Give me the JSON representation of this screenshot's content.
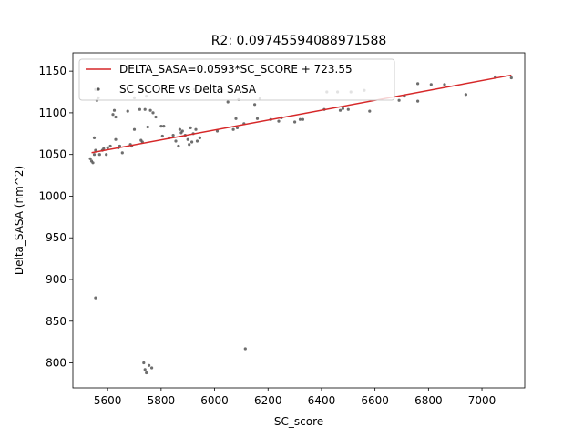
{
  "chart_data": {
    "type": "scatter",
    "title": "R2: 0.09745594088971588",
    "xlabel": "SC_score",
    "ylabel": "Delta_SASA (nm^2)",
    "xlim": [
      5470,
      7160
    ],
    "ylim": [
      770,
      1172
    ],
    "xticks": [
      5600,
      5800,
      6000,
      6200,
      6400,
      6600,
      6800,
      7000
    ],
    "yticks": [
      800,
      850,
      900,
      950,
      1000,
      1050,
      1100,
      1150
    ],
    "xtick_labels": [
      "5600",
      "5800",
      "6000",
      "6200",
      "6400",
      "6600",
      "6800",
      "7000"
    ],
    "ytick_labels": [
      "800",
      "850",
      "900",
      "950",
      "1000",
      "1050",
      "1100",
      "1150"
    ],
    "grid": false,
    "legend_position": "top-left",
    "colors": {
      "fit": "#d62728",
      "points": "#555555"
    },
    "series": [
      {
        "name": "DELTA_SASA=0.0593*SC_SCORE + 723.55",
        "kind": "line",
        "slope": 0.0593,
        "intercept": 723.55,
        "x_range": [
          5540,
          7110
        ]
      },
      {
        "name": "SC SCORE vs Delta SASA",
        "kind": "scatter",
        "points": [
          [
            5535,
            1045
          ],
          [
            5540,
            1042
          ],
          [
            5545,
            1040
          ],
          [
            5550,
            1050
          ],
          [
            5550,
            1070
          ],
          [
            5555,
            1055
          ],
          [
            5560,
            1115
          ],
          [
            5555,
            1128
          ],
          [
            5565,
            1118
          ],
          [
            5570,
            1050
          ],
          [
            5580,
            1055
          ],
          [
            5585,
            1057
          ],
          [
            5595,
            1050
          ],
          [
            5600,
            1058
          ],
          [
            5610,
            1060
          ],
          [
            5620,
            1098
          ],
          [
            5625,
            1103
          ],
          [
            5630,
            1095
          ],
          [
            5630,
            1068
          ],
          [
            5640,
            1058
          ],
          [
            5645,
            1060
          ],
          [
            5655,
            1052
          ],
          [
            5675,
            1102
          ],
          [
            5685,
            1062
          ],
          [
            5690,
            1060
          ],
          [
            5700,
            1080
          ],
          [
            5700,
            1118
          ],
          [
            5720,
            1104
          ],
          [
            5725,
            1067
          ],
          [
            5730,
            1065
          ],
          [
            5740,
            1104
          ],
          [
            5745,
            1120
          ],
          [
            5750,
            1083
          ],
          [
            5760,
            1103
          ],
          [
            5770,
            1100
          ],
          [
            5780,
            1095
          ],
          [
            5800,
            1084
          ],
          [
            5805,
            1072
          ],
          [
            5810,
            1084
          ],
          [
            5830,
            1070
          ],
          [
            5845,
            1073
          ],
          [
            5855,
            1066
          ],
          [
            5865,
            1060
          ],
          [
            5870,
            1080
          ],
          [
            5875,
            1076
          ],
          [
            5880,
            1078
          ],
          [
            5890,
            1073
          ],
          [
            5900,
            1068
          ],
          [
            5905,
            1062
          ],
          [
            5910,
            1082
          ],
          [
            5915,
            1065
          ],
          [
            5920,
            1075
          ],
          [
            5925,
            1128
          ],
          [
            5930,
            1080
          ],
          [
            5935,
            1066
          ],
          [
            5945,
            1070
          ],
          [
            5950,
            1127
          ],
          [
            6010,
            1078
          ],
          [
            6050,
            1113
          ],
          [
            6070,
            1080
          ],
          [
            6080,
            1093
          ],
          [
            6085,
            1082
          ],
          [
            6090,
            1116
          ],
          [
            6110,
            1087
          ],
          [
            6150,
            1110
          ],
          [
            6160,
            1093
          ],
          [
            6170,
            1117
          ],
          [
            6210,
            1092
          ],
          [
            6240,
            1090
          ],
          [
            6250,
            1094
          ],
          [
            6300,
            1089
          ],
          [
            6320,
            1092
          ],
          [
            6330,
            1092
          ],
          [
            6410,
            1104
          ],
          [
            6420,
            1125
          ],
          [
            6460,
            1125
          ],
          [
            6470,
            1103
          ],
          [
            6480,
            1105
          ],
          [
            6500,
            1104
          ],
          [
            6510,
            1125
          ],
          [
            6560,
            1127
          ],
          [
            6580,
            1102
          ],
          [
            6690,
            1115
          ],
          [
            6710,
            1120
          ],
          [
            6760,
            1114
          ],
          [
            6760,
            1135
          ],
          [
            6810,
            1134
          ],
          [
            6860,
            1134
          ],
          [
            6940,
            1122
          ],
          [
            7050,
            1143
          ],
          [
            7110,
            1142
          ],
          [
            5555,
            878
          ],
          [
            5735,
            800
          ],
          [
            5740,
            792
          ],
          [
            5745,
            788
          ],
          [
            5755,
            797
          ],
          [
            5765,
            794
          ],
          [
            6115,
            817
          ]
        ]
      }
    ]
  }
}
